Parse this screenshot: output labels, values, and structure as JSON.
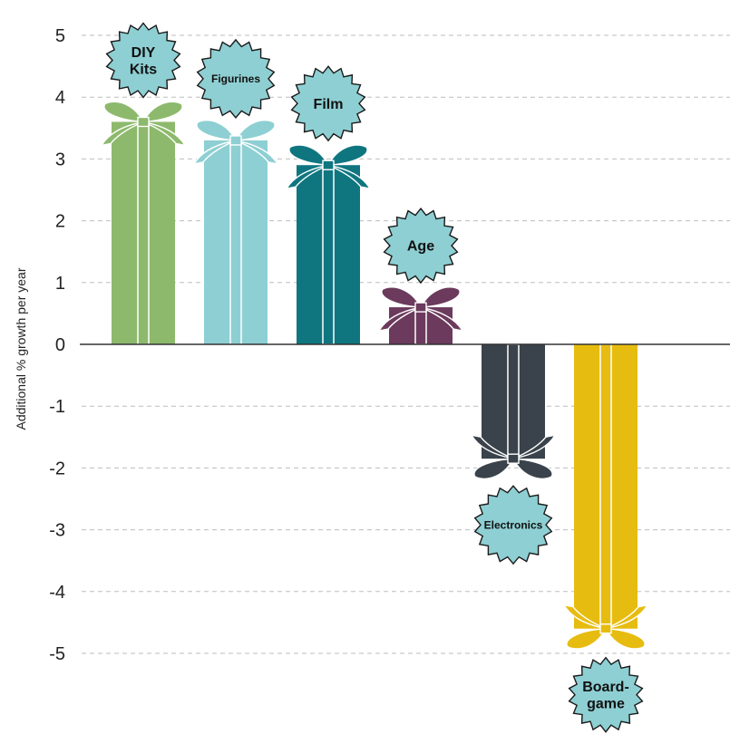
{
  "chart_data": {
    "type": "bar",
    "title": "",
    "xlabel": "",
    "ylabel": "Additional % growth per year",
    "ylim": [
      -5.5,
      5.2
    ],
    "yticks": [
      5,
      4,
      3,
      2,
      1,
      0,
      -1,
      -2,
      -3,
      -4,
      -5
    ],
    "ytick_labels": [
      "5",
      "4",
      "3",
      "2",
      "1",
      "0",
      "-1",
      "-2",
      "-3",
      "-4",
      "-5"
    ],
    "grid": true,
    "bars": [
      {
        "label_lines": [
          "DIY",
          "Kits"
        ],
        "value": 3.6,
        "color": "#8db96c",
        "label_size": "large"
      },
      {
        "label_lines": [
          "Figurines"
        ],
        "value": 3.3,
        "color": "#8ecfd3",
        "label_size": "small"
      },
      {
        "label_lines": [
          "Film"
        ],
        "value": 2.9,
        "color": "#0f7680",
        "label_size": "large"
      },
      {
        "label_lines": [
          "Age"
        ],
        "value": 0.6,
        "color": "#6b3a5c",
        "label_size": "large"
      },
      {
        "label_lines": [
          "Electronics"
        ],
        "value": -1.85,
        "color": "#3a434b",
        "label_size": "small"
      },
      {
        "label_lines": [
          "Board-",
          "game"
        ],
        "value": -4.6,
        "color": "#e7bc10",
        "label_size": "large"
      }
    ],
    "badge_color": "#8ecfd3"
  }
}
